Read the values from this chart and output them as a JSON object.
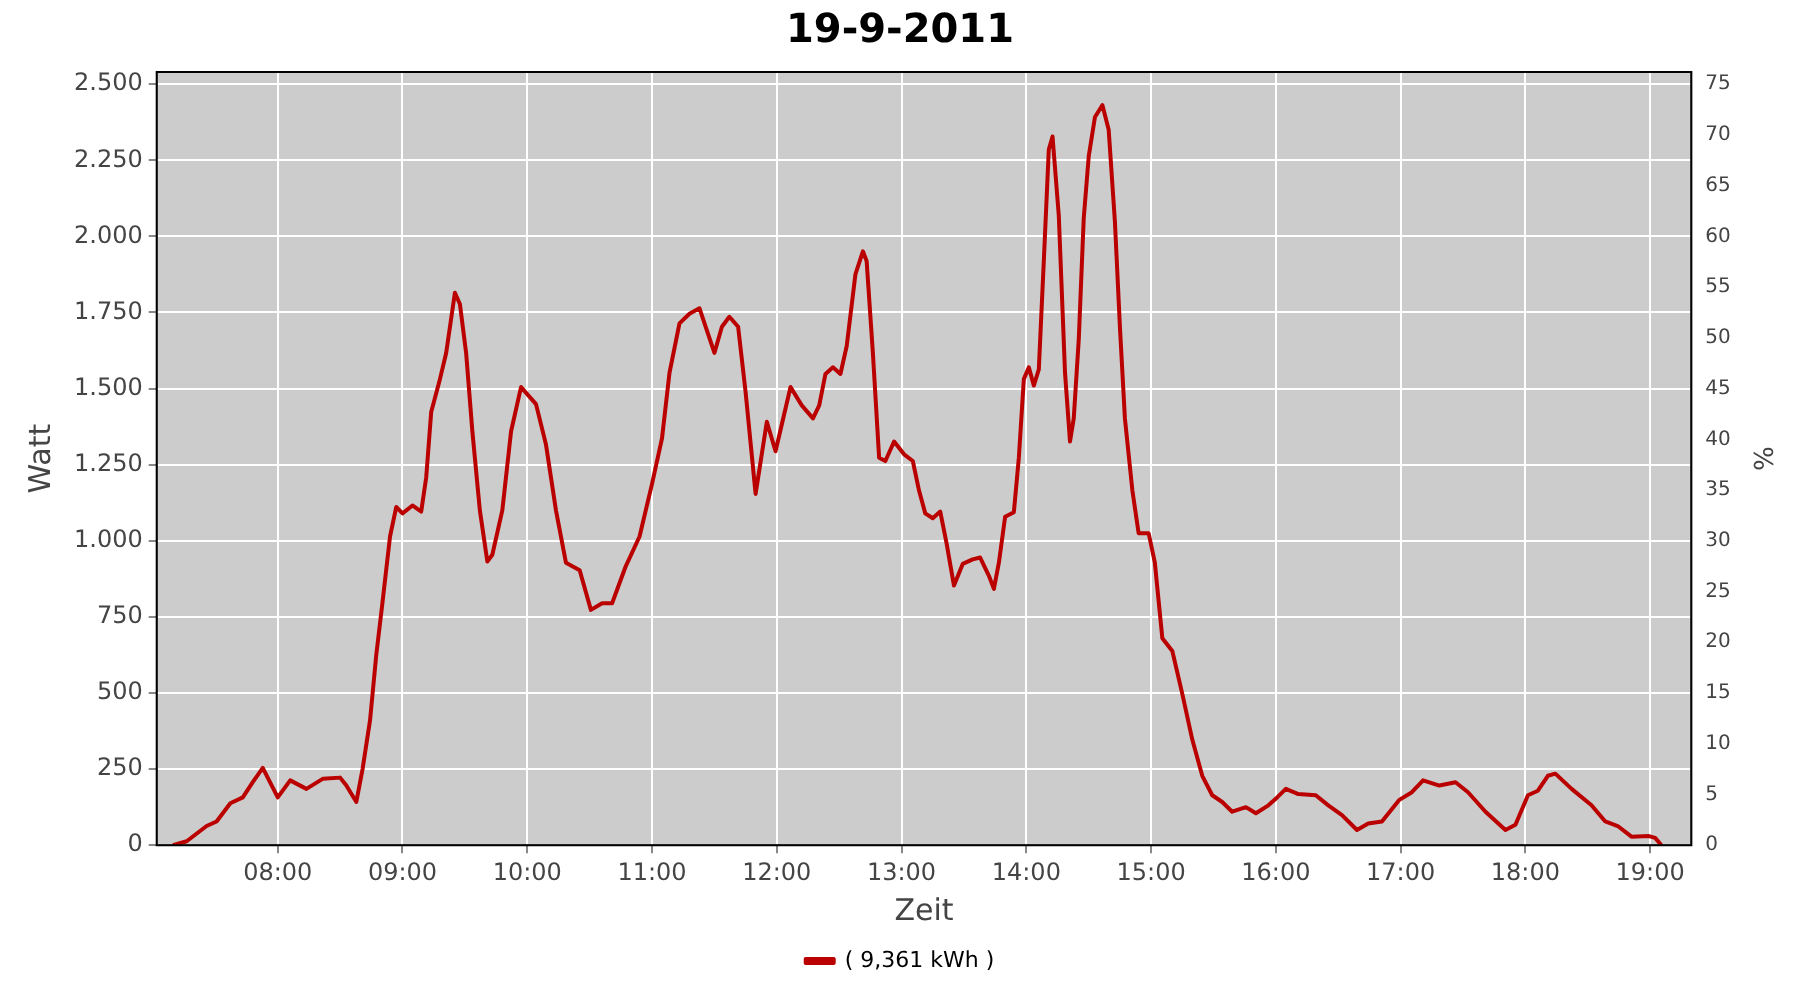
{
  "chart_data": {
    "type": "line",
    "title": "19-9-2011",
    "xlabel": "Zeit",
    "ylabel": "Watt",
    "y2label": "%",
    "x": [
      7.16,
      7.27,
      7.43,
      7.51,
      7.62,
      7.72,
      7.8,
      7.88,
      8.0,
      8.1,
      8.23,
      8.36,
      8.5,
      8.55,
      8.63,
      8.68,
      8.74,
      8.79,
      8.84,
      8.9,
      8.95,
      9.0,
      9.08,
      9.15,
      9.19,
      9.23,
      9.3,
      9.35,
      9.42,
      9.46,
      9.51,
      9.56,
      9.62,
      9.68,
      9.72,
      9.8,
      9.87,
      9.95,
      10.07,
      10.15,
      10.23,
      10.31,
      10.42,
      10.51,
      10.6,
      10.68,
      10.79,
      10.9,
      11.0,
      11.08,
      11.14,
      11.22,
      11.3,
      11.38,
      11.43,
      11.5,
      11.56,
      11.62,
      11.69,
      11.75,
      11.83,
      11.92,
      11.99,
      12.11,
      12.2,
      12.29,
      12.34,
      12.39,
      12.45,
      12.51,
      12.56,
      12.63,
      12.69,
      12.72,
      12.77,
      12.82,
      12.87,
      12.94,
      13.02,
      13.09,
      13.14,
      13.19,
      13.25,
      13.31,
      13.36,
      13.42,
      13.49,
      13.57,
      13.63,
      13.7,
      13.74,
      13.78,
      13.83,
      13.9,
      13.94,
      13.98,
      14.02,
      14.06,
      14.1,
      14.14,
      14.18,
      14.21,
      14.26,
      14.31,
      14.35,
      14.38,
      14.42,
      14.46,
      14.5,
      14.55,
      14.61,
      14.66,
      14.71,
      14.75,
      14.79,
      14.85,
      14.9,
      14.98,
      15.03,
      15.09,
      15.17,
      15.25,
      15.33,
      15.41,
      15.49,
      15.57,
      15.65,
      15.76,
      15.84,
      15.94,
      16.01,
      16.08,
      16.18,
      16.32,
      16.42,
      16.53,
      16.65,
      16.74,
      16.85,
      16.99,
      17.09,
      17.18,
      17.31,
      17.44,
      17.54,
      17.68,
      17.84,
      17.92,
      18.02,
      18.1,
      18.18,
      18.24,
      18.37,
      18.53,
      18.64,
      18.74,
      18.85,
      18.99,
      19.04,
      19.09
    ],
    "series": [
      {
        "name": "( 9,361 kWh )",
        "color": "#bb0000",
        "values": [
          0,
          13,
          63,
          78,
          138,
          157,
          207,
          254,
          157,
          213,
          185,
          218,
          222,
          196,
          142,
          250,
          411,
          626,
          799,
          1014,
          1111,
          1090,
          1116,
          1096,
          1208,
          1423,
          1531,
          1617,
          1815,
          1778,
          1617,
          1359,
          1100,
          932,
          954,
          1100,
          1359,
          1505,
          1449,
          1316,
          1100,
          928,
          903,
          773,
          795,
          795,
          917,
          1014,
          1187,
          1337,
          1552,
          1714,
          1746,
          1764,
          1703,
          1617,
          1703,
          1736,
          1703,
          1488,
          1154,
          1391,
          1294,
          1505,
          1445,
          1402,
          1445,
          1548,
          1570,
          1548,
          1639,
          1875,
          1951,
          1919,
          1617,
          1273,
          1262,
          1326,
          1284,
          1262,
          1165,
          1090,
          1074,
          1096,
          993,
          853,
          924,
          939,
          945,
          885,
          842,
          928,
          1079,
          1094,
          1273,
          1531,
          1570,
          1510,
          1563,
          1919,
          2285,
          2328,
          2069,
          1552,
          1326,
          1402,
          1660,
          2059,
          2263,
          2392,
          2431,
          2350,
          2048,
          1703,
          1402,
          1165,
          1025,
          1025,
          928,
          680,
          638,
          497,
          347,
          228,
          164,
          142,
          110,
          125,
          105,
          131,
          157,
          185,
          168,
          164,
          131,
          99,
          50,
          71,
          78,
          149,
          174,
          213,
          196,
          207,
          174,
          110,
          50,
          67,
          164,
          179,
          228,
          235,
          185,
          131,
          78,
          63,
          28,
          30,
          24,
          0
        ]
      }
    ],
    "xlim": [
      7.03,
      19.33
    ],
    "xticks": [
      {
        "value": 8,
        "label": "08:00"
      },
      {
        "value": 9,
        "label": "09:00"
      },
      {
        "value": 10,
        "label": "10:00"
      },
      {
        "value": 11,
        "label": "11:00"
      },
      {
        "value": 12,
        "label": "12:00"
      },
      {
        "value": 13,
        "label": "13:00"
      },
      {
        "value": 14,
        "label": "14:00"
      },
      {
        "value": 15,
        "label": "15:00"
      },
      {
        "value": 16,
        "label": "16:00"
      },
      {
        "value": 17,
        "label": "17:00"
      },
      {
        "value": 18,
        "label": "18:00"
      },
      {
        "value": 19,
        "label": "19:00"
      }
    ],
    "ylim": [
      0,
      2540
    ],
    "yticks": [
      0,
      250,
      500,
      750,
      {
        "value": 1000,
        "label": "1.000"
      },
      {
        "value": 1250,
        "label": "1.250"
      },
      {
        "value": 1500,
        "label": "1.500"
      },
      {
        "value": 1750,
        "label": "1.750"
      },
      {
        "value": 2000,
        "label": "2.000"
      },
      {
        "value": 2250,
        "label": "2.250"
      },
      {
        "value": 2500,
        "label": "2.500"
      }
    ],
    "y2lim": [
      0,
      76.2
    ],
    "y2ticks": [
      0,
      5,
      10,
      15,
      20,
      25,
      30,
      35,
      40,
      45,
      50,
      55,
      60,
      65,
      70,
      75
    ],
    "grid": true,
    "legend": "bottom",
    "marker": "none",
    "line_style": "solid"
  }
}
